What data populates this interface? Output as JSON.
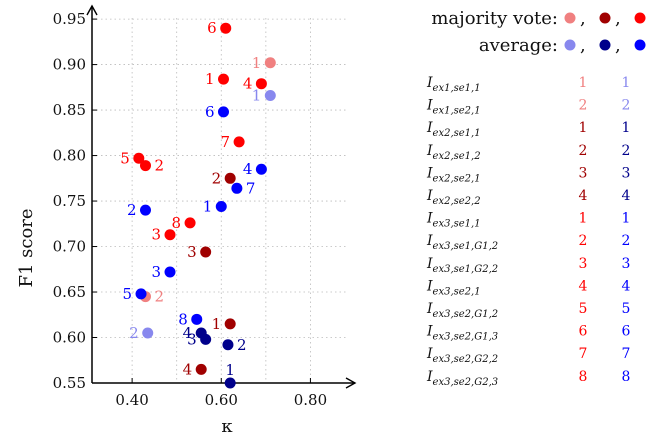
{
  "chart_data": {
    "type": "scatter",
    "xlabel": "κ",
    "ylabel": "F1 score",
    "xlim": [
      0.31,
      0.9
    ],
    "ylim": [
      0.55,
      0.96
    ],
    "xticks": [
      0.4,
      0.6,
      0.8
    ],
    "xtick_labels": [
      "0.40",
      "0.60",
      "0.80"
    ],
    "yticks": [
      0.55,
      0.6,
      0.65,
      0.7,
      0.75,
      0.8,
      0.85,
      0.9,
      0.95
    ],
    "ytick_labels": [
      "0.55",
      "0.60",
      "0.65",
      "0.70",
      "0.75",
      "0.80",
      "0.85",
      "0.90",
      "0.95"
    ],
    "grid": true,
    "legend": {
      "majority_vote_label": "majority vote:",
      "average_label": "average:",
      "majority_vote_colors": [
        "#f08080",
        "#a00000",
        "#ff0000"
      ],
      "average_colors": [
        "#8888ee",
        "#00008b",
        "#0000ff"
      ],
      "separator": ","
    },
    "colors": {
      "mv_light": "#f08080",
      "mv_dark": "#a00000",
      "mv_bright": "#ff0000",
      "avg_light": "#8888ee",
      "avg_dark": "#00008b",
      "avg_bright": "#0000ff"
    },
    "points": [
      {
        "x": 0.71,
        "y": 0.902,
        "label": "1",
        "color": "mv_light",
        "side": "left"
      },
      {
        "x": 0.43,
        "y": 0.645,
        "label": "2",
        "color": "mv_light",
        "side": "right"
      },
      {
        "x": 0.62,
        "y": 0.615,
        "label": "1",
        "color": "mv_dark",
        "side": "left"
      },
      {
        "x": 0.62,
        "y": 0.775,
        "label": "2",
        "color": "mv_dark",
        "side": "left"
      },
      {
        "x": 0.565,
        "y": 0.694,
        "label": "3",
        "color": "mv_dark",
        "side": "left"
      },
      {
        "x": 0.555,
        "y": 0.565,
        "label": "4",
        "color": "mv_dark",
        "side": "left"
      },
      {
        "x": 0.605,
        "y": 0.884,
        "label": "1",
        "color": "mv_bright",
        "side": "left"
      },
      {
        "x": 0.43,
        "y": 0.789,
        "label": "2",
        "color": "mv_bright",
        "side": "right"
      },
      {
        "x": 0.485,
        "y": 0.713,
        "label": "3",
        "color": "mv_bright",
        "side": "left"
      },
      {
        "x": 0.69,
        "y": 0.879,
        "label": "4",
        "color": "mv_bright",
        "side": "left"
      },
      {
        "x": 0.415,
        "y": 0.797,
        "label": "5",
        "color": "mv_bright",
        "side": "left"
      },
      {
        "x": 0.61,
        "y": 0.94,
        "label": "6",
        "color": "mv_bright",
        "side": "left"
      },
      {
        "x": 0.64,
        "y": 0.815,
        "label": "7",
        "color": "mv_bright",
        "side": "left"
      },
      {
        "x": 0.53,
        "y": 0.726,
        "label": "8",
        "color": "mv_bright",
        "side": "left"
      },
      {
        "x": 0.71,
        "y": 0.866,
        "label": "1",
        "color": "avg_light",
        "side": "left"
      },
      {
        "x": 0.435,
        "y": 0.605,
        "label": "2",
        "color": "avg_light",
        "side": "left"
      },
      {
        "x": 0.62,
        "y": 0.55,
        "label": "1",
        "color": "avg_dark",
        "side": "above"
      },
      {
        "x": 0.615,
        "y": 0.592,
        "label": "2",
        "color": "avg_dark",
        "side": "right"
      },
      {
        "x": 0.565,
        "y": 0.598,
        "label": "3",
        "color": "avg_dark",
        "side": "left"
      },
      {
        "x": 0.555,
        "y": 0.605,
        "label": "4",
        "color": "avg_dark",
        "side": "left"
      },
      {
        "x": 0.6,
        "y": 0.744,
        "label": "1",
        "color": "avg_bright",
        "side": "left"
      },
      {
        "x": 0.43,
        "y": 0.74,
        "label": "2",
        "color": "avg_bright",
        "side": "left"
      },
      {
        "x": 0.485,
        "y": 0.672,
        "label": "3",
        "color": "avg_bright",
        "side": "left"
      },
      {
        "x": 0.69,
        "y": 0.785,
        "label": "4",
        "color": "avg_bright",
        "side": "left"
      },
      {
        "x": 0.42,
        "y": 0.648,
        "label": "5",
        "color": "avg_bright",
        "side": "left"
      },
      {
        "x": 0.605,
        "y": 0.848,
        "label": "6",
        "color": "avg_bright",
        "side": "left"
      },
      {
        "x": 0.635,
        "y": 0.764,
        "label": "7",
        "color": "avg_bright",
        "side": "right"
      },
      {
        "x": 0.545,
        "y": 0.62,
        "label": "8",
        "color": "avg_bright",
        "side": "left"
      }
    ],
    "table": [
      {
        "base": "I",
        "sub": "ex1,se1,1",
        "mv": "1",
        "mv_color": "mv_light",
        "avg": "1",
        "avg_color": "avg_light"
      },
      {
        "base": "I",
        "sub": "ex1,se2,1",
        "mv": "2",
        "mv_color": "mv_light",
        "avg": "2",
        "avg_color": "avg_light"
      },
      {
        "base": "I",
        "sub": "ex2,se1,1",
        "mv": "1",
        "mv_color": "mv_dark",
        "avg": "1",
        "avg_color": "avg_dark"
      },
      {
        "base": "I",
        "sub": "ex2,se1,2",
        "mv": "2",
        "mv_color": "mv_dark",
        "avg": "2",
        "avg_color": "avg_dark"
      },
      {
        "base": "I",
        "sub": "ex2,se2,1",
        "mv": "3",
        "mv_color": "mv_dark",
        "avg": "3",
        "avg_color": "avg_dark"
      },
      {
        "base": "I",
        "sub": "ex2,se2,2",
        "mv": "4",
        "mv_color": "mv_dark",
        "avg": "4",
        "avg_color": "avg_dark"
      },
      {
        "base": "I",
        "sub": "ex3,se1,1",
        "mv": "1",
        "mv_color": "mv_bright",
        "avg": "1",
        "avg_color": "avg_bright"
      },
      {
        "base": "I",
        "sub": "ex3,se1,G1,2",
        "mv": "2",
        "mv_color": "mv_bright",
        "avg": "2",
        "avg_color": "avg_bright"
      },
      {
        "base": "I",
        "sub": "ex3,se1,G2,2",
        "mv": "3",
        "mv_color": "mv_bright",
        "avg": "3",
        "avg_color": "avg_bright"
      },
      {
        "base": "I",
        "sub": "ex3,se2,1",
        "mv": "4",
        "mv_color": "mv_bright",
        "avg": "4",
        "avg_color": "avg_bright"
      },
      {
        "base": "I",
        "sub": "ex3,se2,G1,2",
        "mv": "5",
        "mv_color": "mv_bright",
        "avg": "5",
        "avg_color": "avg_bright"
      },
      {
        "base": "I",
        "sub": "ex3,se2,G1,3",
        "mv": "6",
        "mv_color": "mv_bright",
        "avg": "6",
        "avg_color": "avg_bright"
      },
      {
        "base": "I",
        "sub": "ex3,se2,G2,2",
        "mv": "7",
        "mv_color": "mv_bright",
        "avg": "7",
        "avg_color": "avg_bright"
      },
      {
        "base": "I",
        "sub": "ex3,se2,G2,3",
        "mv": "8",
        "mv_color": "mv_bright",
        "avg": "8",
        "avg_color": "avg_bright"
      }
    ]
  }
}
